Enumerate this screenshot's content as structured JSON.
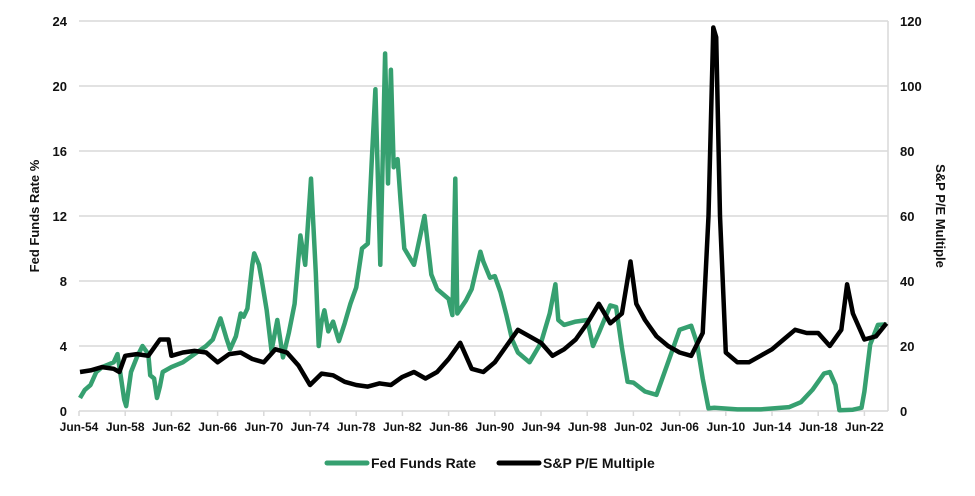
{
  "chart_data": {
    "type": "line",
    "title": "",
    "xlabel": "",
    "ylabel_left": "Fed Funds Rate %",
    "ylabel_right": "S&P P/E Multiple",
    "ylim_left": [
      0,
      24
    ],
    "ylim_right": [
      0,
      120
    ],
    "yticks_left": [
      "0",
      "4",
      "8",
      "12",
      "16",
      "20",
      "24"
    ],
    "yticks_right": [
      "0",
      "20",
      "40",
      "60",
      "80",
      "100",
      "120"
    ],
    "xticks": [
      "Jun-54",
      "Jun-58",
      "Jun-62",
      "Jun-66",
      "Jun-70",
      "Jun-74",
      "Jun-78",
      "Jun-82",
      "Jun-86",
      "Jun-90",
      "Jun-94",
      "Jun-98",
      "Jun-02",
      "Jun-06",
      "Jun-10",
      "Jun-14",
      "Jun-18",
      "Jun-22"
    ],
    "grid": "horizontal",
    "legend": "bottom",
    "series": [
      {
        "name": "Fed Funds Rate",
        "axis": "left",
        "color": "#36a070",
        "points": [
          [
            "1954-07",
            0.8
          ],
          [
            "1954-12",
            1.3
          ],
          [
            "1955-06",
            1.6
          ],
          [
            "1955-12",
            2.4
          ],
          [
            "1956-06",
            2.7
          ],
          [
            "1957-06",
            3.0
          ],
          [
            "1957-10",
            3.5
          ],
          [
            "1958-05",
            0.7
          ],
          [
            "1958-07",
            0.3
          ],
          [
            "1958-12",
            2.4
          ],
          [
            "1959-06",
            3.3
          ],
          [
            "1959-12",
            4.0
          ],
          [
            "1960-06",
            3.5
          ],
          [
            "1960-08",
            2.2
          ],
          [
            "1960-12",
            2.0
          ],
          [
            "1961-03",
            0.8
          ],
          [
            "1961-06",
            1.5
          ],
          [
            "1961-09",
            2.4
          ],
          [
            "1962-06",
            2.7
          ],
          [
            "1963-06",
            3.0
          ],
          [
            "1964-06",
            3.5
          ],
          [
            "1965-06",
            4.0
          ],
          [
            "1966-01",
            4.4
          ],
          [
            "1966-09",
            5.7
          ],
          [
            "1967-03",
            4.5
          ],
          [
            "1967-07",
            3.8
          ],
          [
            "1968-01",
            4.6
          ],
          [
            "1968-06",
            6.0
          ],
          [
            "1968-09",
            5.8
          ],
          [
            "1969-01",
            6.3
          ],
          [
            "1969-06",
            9.0
          ],
          [
            "1969-08",
            9.7
          ],
          [
            "1970-01",
            9.0
          ],
          [
            "1970-04",
            8.0
          ],
          [
            "1970-09",
            6.2
          ],
          [
            "1971-02",
            3.7
          ],
          [
            "1971-08",
            5.6
          ],
          [
            "1972-02",
            3.3
          ],
          [
            "1972-08",
            4.8
          ],
          [
            "1973-02",
            6.6
          ],
          [
            "1973-08",
            10.8
          ],
          [
            "1974-01",
            9.0
          ],
          [
            "1974-07",
            14.3
          ],
          [
            "1974-12",
            8.5
          ],
          [
            "1975-03",
            4.0
          ],
          [
            "1975-06",
            5.5
          ],
          [
            "1975-09",
            6.2
          ],
          [
            "1976-01",
            4.9
          ],
          [
            "1976-06",
            5.5
          ],
          [
            "1976-12",
            4.3
          ],
          [
            "1977-06",
            5.4
          ],
          [
            "1977-12",
            6.6
          ],
          [
            "1978-06",
            7.6
          ],
          [
            "1978-12",
            10.0
          ],
          [
            "1979-06",
            10.3
          ],
          [
            "1979-10",
            15.2
          ],
          [
            "1980-02",
            19.8
          ],
          [
            "1980-07",
            9.0
          ],
          [
            "1980-12",
            22.0
          ],
          [
            "1981-03",
            14.0
          ],
          [
            "1981-06",
            21.0
          ],
          [
            "1981-09",
            15.0
          ],
          [
            "1982-01",
            15.5
          ],
          [
            "1982-04",
            13.0
          ],
          [
            "1982-08",
            10.0
          ],
          [
            "1983-06",
            9.0
          ],
          [
            "1984-05",
            12.0
          ],
          [
            "1984-12",
            8.4
          ],
          [
            "1985-06",
            7.5
          ],
          [
            "1986-06",
            6.9
          ],
          [
            "1986-10",
            5.9
          ],
          [
            "1987-01",
            14.3
          ],
          [
            "1987-03",
            6.0
          ],
          [
            "1987-12",
            6.8
          ],
          [
            "1988-06",
            7.5
          ],
          [
            "1989-03",
            9.8
          ],
          [
            "1989-06",
            9.2
          ],
          [
            "1990-01",
            8.2
          ],
          [
            "1990-06",
            8.3
          ],
          [
            "1990-12",
            7.3
          ],
          [
            "1991-06",
            5.9
          ],
          [
            "1991-12",
            4.4
          ],
          [
            "1992-06",
            3.6
          ],
          [
            "1993-06",
            3.0
          ],
          [
            "1994-06",
            4.2
          ],
          [
            "1995-03",
            6.0
          ],
          [
            "1995-09",
            7.8
          ],
          [
            "1995-12",
            5.6
          ],
          [
            "1996-06",
            5.3
          ],
          [
            "1997-06",
            5.5
          ],
          [
            "1998-06",
            5.6
          ],
          [
            "1998-12",
            4.0
          ],
          [
            "1999-06",
            4.8
          ],
          [
            "2000-06",
            6.5
          ],
          [
            "2000-12",
            6.4
          ],
          [
            "2001-06",
            3.9
          ],
          [
            "2001-12",
            1.8
          ],
          [
            "2002-06",
            1.75
          ],
          [
            "2003-06",
            1.2
          ],
          [
            "2004-06",
            1.0
          ],
          [
            "2005-06",
            3.0
          ],
          [
            "2006-06",
            5.0
          ],
          [
            "2007-06",
            5.25
          ],
          [
            "2007-12",
            4.2
          ],
          [
            "2008-06",
            2.0
          ],
          [
            "2008-12",
            0.16
          ],
          [
            "2009-06",
            0.2
          ],
          [
            "2011-06",
            0.1
          ],
          [
            "2013-06",
            0.1
          ],
          [
            "2015-12",
            0.24
          ],
          [
            "2016-12",
            0.54
          ],
          [
            "2017-12",
            1.3
          ],
          [
            "2018-12",
            2.3
          ],
          [
            "2019-06",
            2.4
          ],
          [
            "2019-12",
            1.6
          ],
          [
            "2020-04",
            0.05
          ],
          [
            "2021-06",
            0.08
          ],
          [
            "2022-03",
            0.2
          ],
          [
            "2022-06",
            1.2
          ],
          [
            "2022-12",
            4.1
          ],
          [
            "2023-08",
            5.3
          ],
          [
            "2024-05",
            5.33
          ]
        ]
      },
      {
        "name": "S&P P/E Multiple",
        "axis": "right",
        "color": "#000000",
        "points": [
          [
            "1954-07",
            12
          ],
          [
            "1955-06",
            12.5
          ],
          [
            "1956-06",
            13.5
          ],
          [
            "1957-06",
            13
          ],
          [
            "1957-12",
            12
          ],
          [
            "1958-06",
            17
          ],
          [
            "1959-06",
            17.5
          ],
          [
            "1960-06",
            17
          ],
          [
            "1961-06",
            22
          ],
          [
            "1962-03",
            22
          ],
          [
            "1962-06",
            17
          ],
          [
            "1963-06",
            18
          ],
          [
            "1964-06",
            18.5
          ],
          [
            "1965-06",
            18
          ],
          [
            "1966-06",
            15
          ],
          [
            "1967-06",
            17.5
          ],
          [
            "1968-06",
            18
          ],
          [
            "1969-06",
            16
          ],
          [
            "1970-06",
            15
          ],
          [
            "1971-06",
            19
          ],
          [
            "1972-06",
            18
          ],
          [
            "1973-06",
            14
          ],
          [
            "1974-06",
            8
          ],
          [
            "1975-06",
            11.5
          ],
          [
            "1976-06",
            11
          ],
          [
            "1977-06",
            9
          ],
          [
            "1978-06",
            8
          ],
          [
            "1979-06",
            7.5
          ],
          [
            "1980-06",
            8.5
          ],
          [
            "1981-06",
            8
          ],
          [
            "1982-06",
            10.5
          ],
          [
            "1983-06",
            12
          ],
          [
            "1984-06",
            10
          ],
          [
            "1985-06",
            12
          ],
          [
            "1986-06",
            16
          ],
          [
            "1987-06",
            21
          ],
          [
            "1988-06",
            13
          ],
          [
            "1989-06",
            12
          ],
          [
            "1990-06",
            15
          ],
          [
            "1991-06",
            20
          ],
          [
            "1992-06",
            25
          ],
          [
            "1993-06",
            23
          ],
          [
            "1994-06",
            21
          ],
          [
            "1995-06",
            17
          ],
          [
            "1996-06",
            19
          ],
          [
            "1997-06",
            22
          ],
          [
            "1998-06",
            27
          ],
          [
            "1999-06",
            33
          ],
          [
            "2000-06",
            27
          ],
          [
            "2001-06",
            30
          ],
          [
            "2002-03",
            46
          ],
          [
            "2002-09",
            33
          ],
          [
            "2003-06",
            28
          ],
          [
            "2004-06",
            23
          ],
          [
            "2005-06",
            20
          ],
          [
            "2006-06",
            18
          ],
          [
            "2007-06",
            17
          ],
          [
            "2008-06",
            24
          ],
          [
            "2008-12",
            60
          ],
          [
            "2009-05",
            118
          ],
          [
            "2009-08",
            115
          ],
          [
            "2009-12",
            60
          ],
          [
            "2010-06",
            18
          ],
          [
            "2011-06",
            15
          ],
          [
            "2012-06",
            15
          ],
          [
            "2013-06",
            17
          ],
          [
            "2014-06",
            19
          ],
          [
            "2015-06",
            22
          ],
          [
            "2016-06",
            25
          ],
          [
            "2017-06",
            24
          ],
          [
            "2018-06",
            24
          ],
          [
            "2019-06",
            20
          ],
          [
            "2020-06",
            25
          ],
          [
            "2020-12",
            39
          ],
          [
            "2021-06",
            30
          ],
          [
            "2022-06",
            22
          ],
          [
            "2023-06",
            23
          ],
          [
            "2024-05",
            27
          ]
        ]
      }
    ]
  }
}
